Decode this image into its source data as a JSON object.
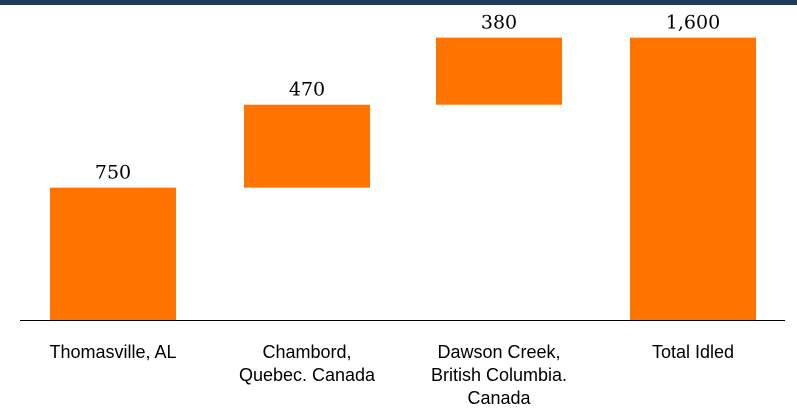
{
  "colors": {
    "bar": "#FF7300",
    "top_bar": "#1F3B5A",
    "axis": "#000000"
  },
  "chart_data": {
    "type": "bar",
    "subtype": "waterfall",
    "categories": [
      [
        "Thomasville, AL"
      ],
      [
        "Chambord,",
        "Quebec. Canada"
      ],
      [
        "Dawson Creek,",
        "British Columbia.",
        "Canada"
      ],
      [
        "Total Idled"
      ]
    ],
    "values": [
      750,
      470,
      380,
      1600
    ],
    "value_labels": [
      "750",
      "470",
      "380",
      "1,600"
    ],
    "is_total": [
      false,
      false,
      false,
      true
    ],
    "ylim": [
      0,
      1700
    ],
    "grid": false,
    "legend": "none",
    "title": "",
    "xlabel": "",
    "ylabel": ""
  }
}
